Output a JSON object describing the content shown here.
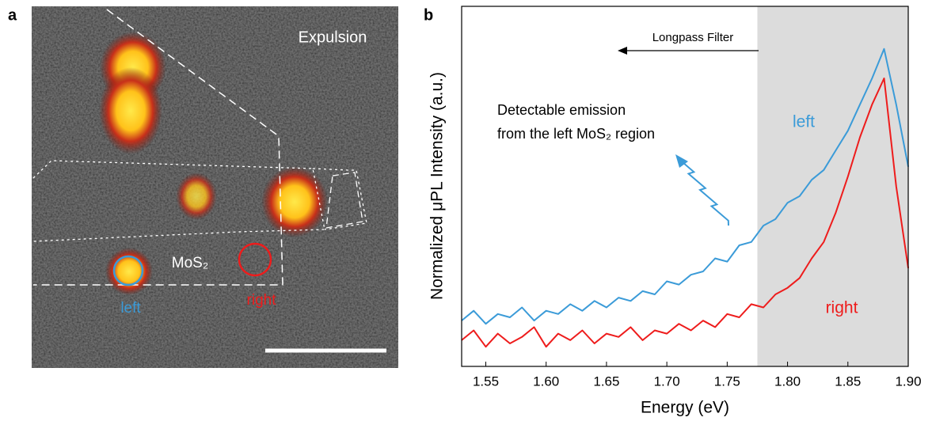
{
  "image_panel": {
    "label": "a",
    "title": "Expulsion",
    "material": "MoS₂",
    "left": "left",
    "right": "right"
  },
  "chart_data": {
    "type": "line",
    "panel_label": "b",
    "x_label": "Energy (eV)",
    "y_label": "Normalized μPL Intensity (a.u.)",
    "annotations": [
      "Longpass Filter",
      "Detectable emission",
      "from the left MoS₂ region"
    ],
    "filter_range": [
      1.775,
      1.9
    ],
    "xlim": [
      1.53,
      1.9
    ],
    "ylim": [
      0,
      1.1
    ],
    "xticks": [
      1.55,
      {
        "value": 1.6,
        "label": "1.60"
      },
      1.65,
      {
        "value": 1.7,
        "label": "1.70"
      },
      1.75,
      {
        "value": 1.8,
        "label": "1.80"
      },
      1.85,
      {
        "value": 1.9,
        "label": "1.90"
      }
    ],
    "x": [
      1.53,
      1.54,
      1.55,
      1.56,
      1.57,
      1.58,
      1.59,
      1.6,
      1.61,
      1.62,
      1.63,
      1.64,
      1.65,
      1.66,
      1.67,
      1.68,
      1.69,
      1.7,
      1.71,
      1.72,
      1.73,
      1.74,
      1.75,
      1.76,
      1.77,
      1.78,
      1.79,
      1.8,
      1.81,
      1.82,
      1.83,
      1.84,
      1.85,
      1.86,
      1.87,
      1.88,
      1.89,
      1.9
    ],
    "series": [
      {
        "name": "left",
        "color": "#3b9bd8",
        "values": [
          0.14,
          0.17,
          0.13,
          0.16,
          0.15,
          0.18,
          0.14,
          0.17,
          0.16,
          0.19,
          0.17,
          0.2,
          0.18,
          0.21,
          0.2,
          0.23,
          0.22,
          0.26,
          0.25,
          0.28,
          0.29,
          0.33,
          0.32,
          0.37,
          0.38,
          0.43,
          0.45,
          0.5,
          0.52,
          0.57,
          0.6,
          0.66,
          0.72,
          0.8,
          0.88,
          0.97,
          0.8,
          0.61
        ]
      },
      {
        "name": "right",
        "color": "#ee1c1c",
        "values": [
          0.08,
          0.11,
          0.06,
          0.1,
          0.07,
          0.09,
          0.12,
          0.06,
          0.1,
          0.08,
          0.11,
          0.07,
          0.1,
          0.09,
          0.12,
          0.08,
          0.11,
          0.1,
          0.13,
          0.11,
          0.14,
          0.12,
          0.16,
          0.15,
          0.19,
          0.18,
          0.22,
          0.24,
          0.27,
          0.33,
          0.38,
          0.47,
          0.58,
          0.7,
          0.8,
          0.88,
          0.55,
          0.3
        ]
      }
    ]
  }
}
